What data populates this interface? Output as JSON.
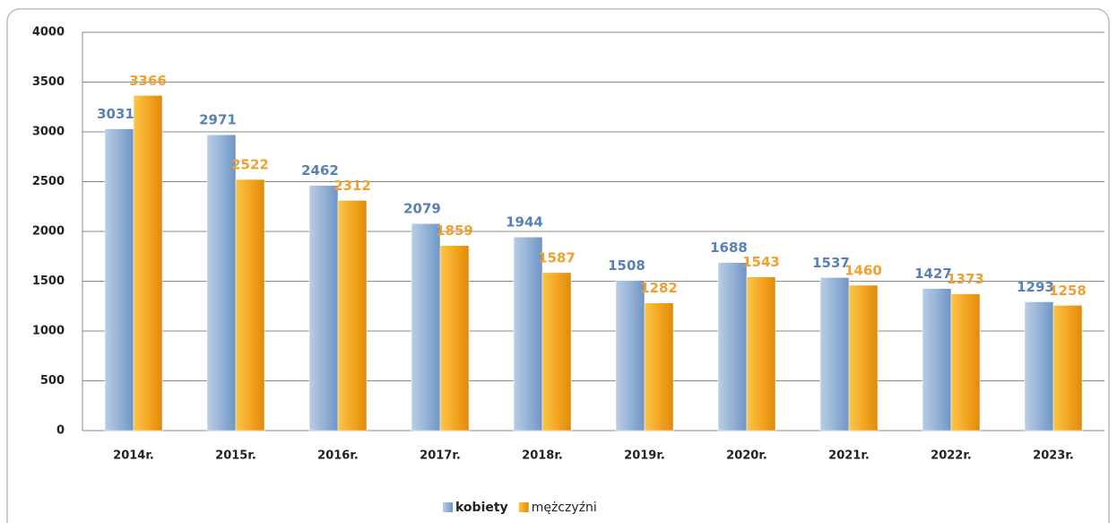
{
  "chart_data": {
    "type": "bar",
    "categories": [
      "2014r.",
      "2015r.",
      "2016r.",
      "2017r.",
      "2018r.",
      "2019r.",
      "2020r.",
      "2021r.",
      "2022r.",
      "2023r."
    ],
    "series": [
      {
        "name": "kobiety",
        "color": "#95b3d7",
        "label_color": "#5a80b8",
        "values": [
          3031,
          2971,
          2462,
          2079,
          1944,
          1508,
          1688,
          1537,
          1427,
          1293
        ]
      },
      {
        "name": "mężczyźni",
        "color": "#f5a623",
        "label_color": "#f0a030",
        "values": [
          3366,
          2522,
          2312,
          1859,
          1587,
          1282,
          1543,
          1460,
          1373,
          1258
        ]
      }
    ],
    "ylim": [
      0,
      4000
    ],
    "yticks": [
      0,
      500,
      1000,
      1500,
      2000,
      2500,
      3000,
      3500,
      4000
    ],
    "grid": true,
    "legend": "bottom"
  }
}
